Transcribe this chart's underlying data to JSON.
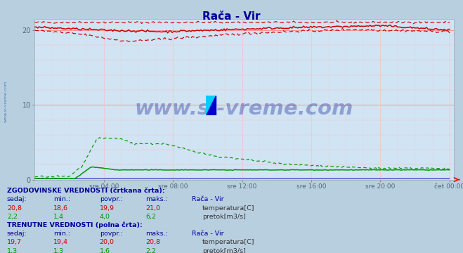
{
  "title": "Rača - Vir",
  "title_color": "#000099",
  "plot_bg_color": "#d0e4f4",
  "outer_bg_color": "#b8cfe0",
  "bottom_bg_color": "#dce8f5",
  "x_tick_labels": [
    "sre 04:00",
    "sre 08:00",
    "sre 12:00",
    "sre 16:00",
    "sre 20:00",
    "čet 00:00"
  ],
  "x_tick_pos": [
    0.1667,
    0.3333,
    0.5,
    0.6667,
    0.8333,
    1.0
  ],
  "y_ticks": [
    0,
    10,
    20
  ],
  "ylim_max": 21.5,
  "tick_color": "#556677",
  "grid_color_major": "#ff8888",
  "grid_color_minor": "#ffbbbb",
  "watermark": "www.si-vreme.com",
  "watermark_color": "#223399",
  "watermark_alpha": 0.38,
  "sidebar_label": "www.si-vreme.com",
  "temp_color": "#cc0000",
  "flow_color": "#009900",
  "height_color": "#0000bb",
  "hist_label": "ZGODOVINSKE VREDNOSTI (črtkana črta):",
  "curr_label": "TRENUTNE VREDNOSTI (polna črta):",
  "col_headers": [
    "sedaj:",
    "min.:",
    "povpr.:",
    "maks.:",
    "Rača - Vir"
  ],
  "hist_temp": [
    "20,8",
    "18,6",
    "19,9",
    "21,0"
  ],
  "hist_flow": [
    "2,2",
    "1,4",
    "4,0",
    "6,2"
  ],
  "curr_temp": [
    "19,7",
    "19,4",
    "20,0",
    "20,8"
  ],
  "curr_flow": [
    "1,3",
    "1,3",
    "1,6",
    "2,2"
  ],
  "temp_label": "temperatura[C]",
  "flow_label": "pretok[m3/s]"
}
